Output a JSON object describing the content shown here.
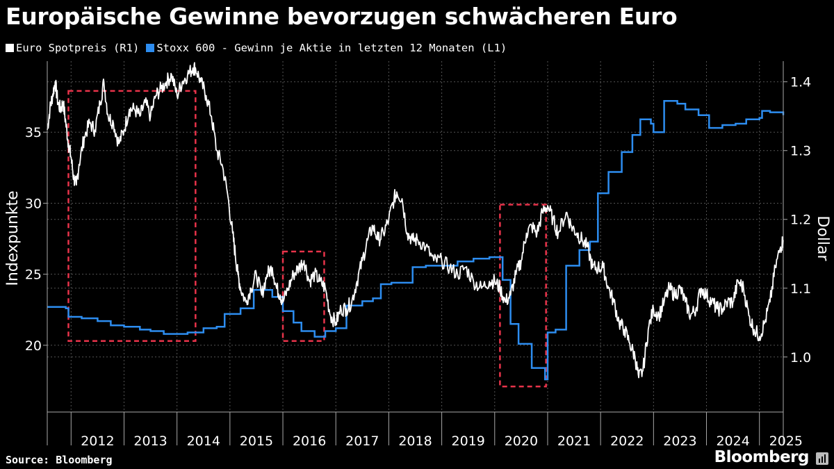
{
  "title": "Europäische Gewinne bevorzugen schwächeren Euro",
  "source": "Source: Bloomberg",
  "brand": "Bloomberg",
  "chart_data": {
    "type": "line",
    "title": "Europäische Gewinne bevorzugen schwächeren Euro",
    "legend_position": "top-left",
    "grid": true,
    "x_labels": [
      "2012",
      "2013",
      "2014",
      "2015",
      "2016",
      "2017",
      "2018",
      "2019",
      "2020",
      "2021",
      "2022",
      "2023",
      "2024",
      "2025"
    ],
    "xlim": [
      2011.55,
      2025.45
    ],
    "y_left": {
      "label": "Indexpunkte",
      "ticks": [
        20,
        25,
        30,
        35
      ],
      "range": [
        15.3,
        40
      ]
    },
    "y_right": {
      "label": "Dollar",
      "ticks": [
        "1.0",
        "1.1",
        "1.2",
        "1.3",
        "1.4"
      ],
      "range": [
        0.92,
        1.43
      ]
    },
    "series": [
      {
        "name": "Euro Spotpreis (R1)",
        "axis": "right",
        "color": "#ffffff",
        "points": [
          [
            2011.55,
            1.33
          ],
          [
            2011.6,
            1.36
          ],
          [
            2011.65,
            1.38
          ],
          [
            2011.7,
            1.4
          ],
          [
            2011.75,
            1.37
          ],
          [
            2011.8,
            1.36
          ],
          [
            2011.85,
            1.37
          ],
          [
            2011.9,
            1.34
          ],
          [
            2011.95,
            1.31
          ],
          [
            2012.0,
            1.29
          ],
          [
            2012.05,
            1.26
          ],
          [
            2012.1,
            1.25
          ],
          [
            2012.15,
            1.28
          ],
          [
            2012.25,
            1.32
          ],
          [
            2012.35,
            1.34
          ],
          [
            2012.45,
            1.33
          ],
          [
            2012.55,
            1.37
          ],
          [
            2012.62,
            1.4
          ],
          [
            2012.7,
            1.35
          ],
          [
            2012.8,
            1.34
          ],
          [
            2012.9,
            1.31
          ],
          [
            2013.0,
            1.33
          ],
          [
            2013.1,
            1.36
          ],
          [
            2013.2,
            1.36
          ],
          [
            2013.3,
            1.35
          ],
          [
            2013.4,
            1.37
          ],
          [
            2013.5,
            1.35
          ],
          [
            2013.6,
            1.38
          ],
          [
            2013.7,
            1.39
          ],
          [
            2013.8,
            1.4
          ],
          [
            2013.9,
            1.41
          ],
          [
            2014.0,
            1.38
          ],
          [
            2014.1,
            1.4
          ],
          [
            2014.2,
            1.41
          ],
          [
            2014.3,
            1.42
          ],
          [
            2014.35,
            1.42
          ],
          [
            2014.45,
            1.4
          ],
          [
            2014.55,
            1.38
          ],
          [
            2014.65,
            1.35
          ],
          [
            2014.75,
            1.3
          ],
          [
            2014.85,
            1.28
          ],
          [
            2014.95,
            1.24
          ],
          [
            2015.05,
            1.18
          ],
          [
            2015.1,
            1.15
          ],
          [
            2015.15,
            1.12
          ],
          [
            2015.2,
            1.1
          ],
          [
            2015.3,
            1.08
          ],
          [
            2015.4,
            1.1
          ],
          [
            2015.5,
            1.12
          ],
          [
            2015.6,
            1.09
          ],
          [
            2015.7,
            1.12
          ],
          [
            2015.8,
            1.13
          ],
          [
            2015.88,
            1.1
          ],
          [
            2015.95,
            1.09
          ],
          [
            2016.0,
            1.08
          ],
          [
            2016.1,
            1.1
          ],
          [
            2016.2,
            1.12
          ],
          [
            2016.3,
            1.13
          ],
          [
            2016.4,
            1.14
          ],
          [
            2016.5,
            1.11
          ],
          [
            2016.6,
            1.12
          ],
          [
            2016.7,
            1.11
          ],
          [
            2016.8,
            1.1
          ],
          [
            2016.9,
            1.06
          ],
          [
            2017.0,
            1.05
          ],
          [
            2017.1,
            1.07
          ],
          [
            2017.2,
            1.07
          ],
          [
            2017.3,
            1.08
          ],
          [
            2017.4,
            1.11
          ],
          [
            2017.5,
            1.14
          ],
          [
            2017.6,
            1.17
          ],
          [
            2017.7,
            1.19
          ],
          [
            2017.8,
            1.17
          ],
          [
            2017.9,
            1.18
          ],
          [
            2018.0,
            1.2
          ],
          [
            2018.1,
            1.23
          ],
          [
            2018.15,
            1.24
          ],
          [
            2018.25,
            1.23
          ],
          [
            2018.35,
            1.18
          ],
          [
            2018.45,
            1.17
          ],
          [
            2018.55,
            1.17
          ],
          [
            2018.7,
            1.16
          ],
          [
            2018.85,
            1.14
          ],
          [
            2019.0,
            1.14
          ],
          [
            2019.15,
            1.13
          ],
          [
            2019.3,
            1.12
          ],
          [
            2019.45,
            1.13
          ],
          [
            2019.6,
            1.11
          ],
          [
            2019.75,
            1.1
          ],
          [
            2019.9,
            1.11
          ],
          [
            2020.0,
            1.11
          ],
          [
            2020.1,
            1.1
          ],
          [
            2020.2,
            1.08
          ],
          [
            2020.3,
            1.09
          ],
          [
            2020.4,
            1.12
          ],
          [
            2020.5,
            1.14
          ],
          [
            2020.6,
            1.18
          ],
          [
            2020.7,
            1.19
          ],
          [
            2020.8,
            1.18
          ],
          [
            2020.9,
            1.21
          ],
          [
            2021.0,
            1.22
          ],
          [
            2021.1,
            1.2
          ],
          [
            2021.2,
            1.18
          ],
          [
            2021.35,
            1.21
          ],
          [
            2021.45,
            1.19
          ],
          [
            2021.55,
            1.18
          ],
          [
            2021.65,
            1.17
          ],
          [
            2021.75,
            1.16
          ],
          [
            2021.85,
            1.13
          ],
          [
            2021.95,
            1.13
          ],
          [
            2022.05,
            1.13
          ],
          [
            2022.15,
            1.1
          ],
          [
            2022.25,
            1.08
          ],
          [
            2022.35,
            1.05
          ],
          [
            2022.45,
            1.04
          ],
          [
            2022.55,
            1.02
          ],
          [
            2022.65,
            1.0
          ],
          [
            2022.72,
            0.97
          ],
          [
            2022.8,
            0.98
          ],
          [
            2022.9,
            1.04
          ],
          [
            2023.0,
            1.07
          ],
          [
            2023.1,
            1.06
          ],
          [
            2023.2,
            1.08
          ],
          [
            2023.3,
            1.1
          ],
          [
            2023.4,
            1.09
          ],
          [
            2023.5,
            1.1
          ],
          [
            2023.6,
            1.08
          ],
          [
            2023.7,
            1.06
          ],
          [
            2023.8,
            1.07
          ],
          [
            2023.9,
            1.1
          ],
          [
            2024.0,
            1.09
          ],
          [
            2024.1,
            1.08
          ],
          [
            2024.2,
            1.07
          ],
          [
            2024.3,
            1.07
          ],
          [
            2024.4,
            1.08
          ],
          [
            2024.5,
            1.08
          ],
          [
            2024.6,
            1.11
          ],
          [
            2024.7,
            1.1
          ],
          [
            2024.8,
            1.06
          ],
          [
            2024.9,
            1.04
          ],
          [
            2025.0,
            1.03
          ],
          [
            2025.1,
            1.05
          ],
          [
            2025.2,
            1.08
          ],
          [
            2025.3,
            1.13
          ],
          [
            2025.4,
            1.16
          ],
          [
            2025.45,
            1.17
          ]
        ]
      },
      {
        "name": "Stoxx 600 - Gewinn je Aktie in letzten 12 Monaten (L1)",
        "axis": "left",
        "color": "#2d8df0",
        "points": [
          [
            2011.55,
            22.7
          ],
          [
            2011.9,
            22.6
          ],
          [
            2011.95,
            22.0
          ],
          [
            2012.2,
            21.9
          ],
          [
            2012.5,
            21.7
          ],
          [
            2012.75,
            21.4
          ],
          [
            2013.0,
            21.3
          ],
          [
            2013.3,
            21.1
          ],
          [
            2013.5,
            21.0
          ],
          [
            2013.75,
            20.8
          ],
          [
            2014.0,
            20.8
          ],
          [
            2014.2,
            20.9
          ],
          [
            2014.5,
            21.2
          ],
          [
            2014.75,
            21.3
          ],
          [
            2014.9,
            22.2
          ],
          [
            2015.2,
            22.6
          ],
          [
            2015.45,
            23.9
          ],
          [
            2015.8,
            23.4
          ],
          [
            2016.0,
            22.4
          ],
          [
            2016.2,
            21.6
          ],
          [
            2016.35,
            21.0
          ],
          [
            2016.6,
            20.6
          ],
          [
            2016.8,
            21.0
          ],
          [
            2017.0,
            21.2
          ],
          [
            2017.2,
            22.8
          ],
          [
            2017.5,
            23.1
          ],
          [
            2017.7,
            23.3
          ],
          [
            2017.85,
            24.3
          ],
          [
            2018.05,
            24.4
          ],
          [
            2018.45,
            25.5
          ],
          [
            2018.7,
            25.6
          ],
          [
            2019.0,
            25.6
          ],
          [
            2019.3,
            25.9
          ],
          [
            2019.6,
            26.1
          ],
          [
            2019.9,
            26.2
          ],
          [
            2020.0,
            26.2
          ],
          [
            2020.15,
            24.6
          ],
          [
            2020.3,
            21.5
          ],
          [
            2020.45,
            20.1
          ],
          [
            2020.7,
            18.4
          ],
          [
            2020.95,
            17.6
          ],
          [
            2021.0,
            20.9
          ],
          [
            2021.15,
            21.1
          ],
          [
            2021.35,
            25.6
          ],
          [
            2021.6,
            26.7
          ],
          [
            2021.8,
            27.3
          ],
          [
            2021.95,
            30.7
          ],
          [
            2022.15,
            32.2
          ],
          [
            2022.4,
            33.6
          ],
          [
            2022.6,
            34.8
          ],
          [
            2022.75,
            35.9
          ],
          [
            2022.95,
            35.6
          ],
          [
            2023.0,
            35.0
          ],
          [
            2023.2,
            37.2
          ],
          [
            2023.45,
            37.0
          ],
          [
            2023.6,
            36.6
          ],
          [
            2023.85,
            36.2
          ],
          [
            2024.05,
            35.3
          ],
          [
            2024.3,
            35.5
          ],
          [
            2024.55,
            35.6
          ],
          [
            2024.75,
            35.9
          ],
          [
            2025.0,
            36.0
          ],
          [
            2025.05,
            36.5
          ],
          [
            2025.2,
            36.4
          ],
          [
            2025.45,
            36.2
          ]
        ]
      }
    ],
    "annotations": [
      {
        "type": "dashed-box",
        "color": "#e8334a",
        "x": [
          2011.95,
          2014.35
        ],
        "y_left": [
          20.3,
          37.9
        ]
      },
      {
        "type": "dashed-box",
        "color": "#e8334a",
        "x": [
          2016.0,
          2016.78
        ],
        "y_left": [
          20.3,
          26.6
        ]
      },
      {
        "type": "dashed-box",
        "color": "#e8334a",
        "x": [
          2020.1,
          2020.97
        ],
        "y_left": [
          17.1,
          29.9
        ]
      }
    ]
  }
}
